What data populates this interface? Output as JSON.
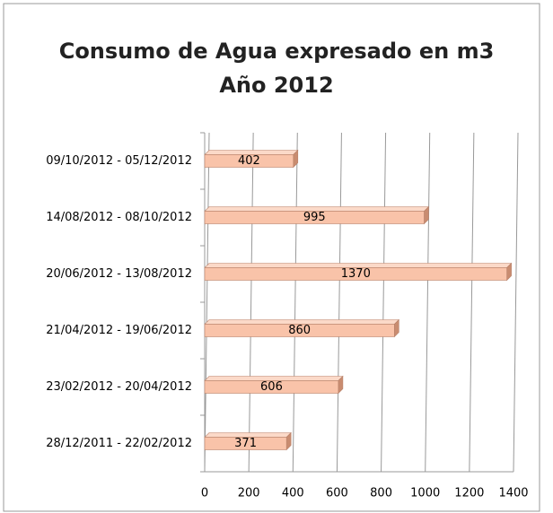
{
  "chart_data": {
    "type": "bar",
    "orientation": "horizontal",
    "title": "Consumo de Agua expresado en m3",
    "subtitle": "Año 2012",
    "categories": [
      "28/12/2011 - 22/02/2012",
      "23/02/2012 - 20/04/2012",
      "21/04/2012 - 19/06/2012",
      "20/06/2012 - 13/08/2012",
      "14/08/2012 - 08/10/2012",
      "09/10/2012 - 05/12/2012"
    ],
    "values": [
      371,
      606,
      860,
      1370,
      995,
      402
    ],
    "color": "#f9c3a9",
    "xlim": [
      0,
      1400
    ],
    "xticks": [
      0,
      200,
      400,
      600,
      800,
      1000,
      1200,
      1400
    ],
    "grid": true
  }
}
